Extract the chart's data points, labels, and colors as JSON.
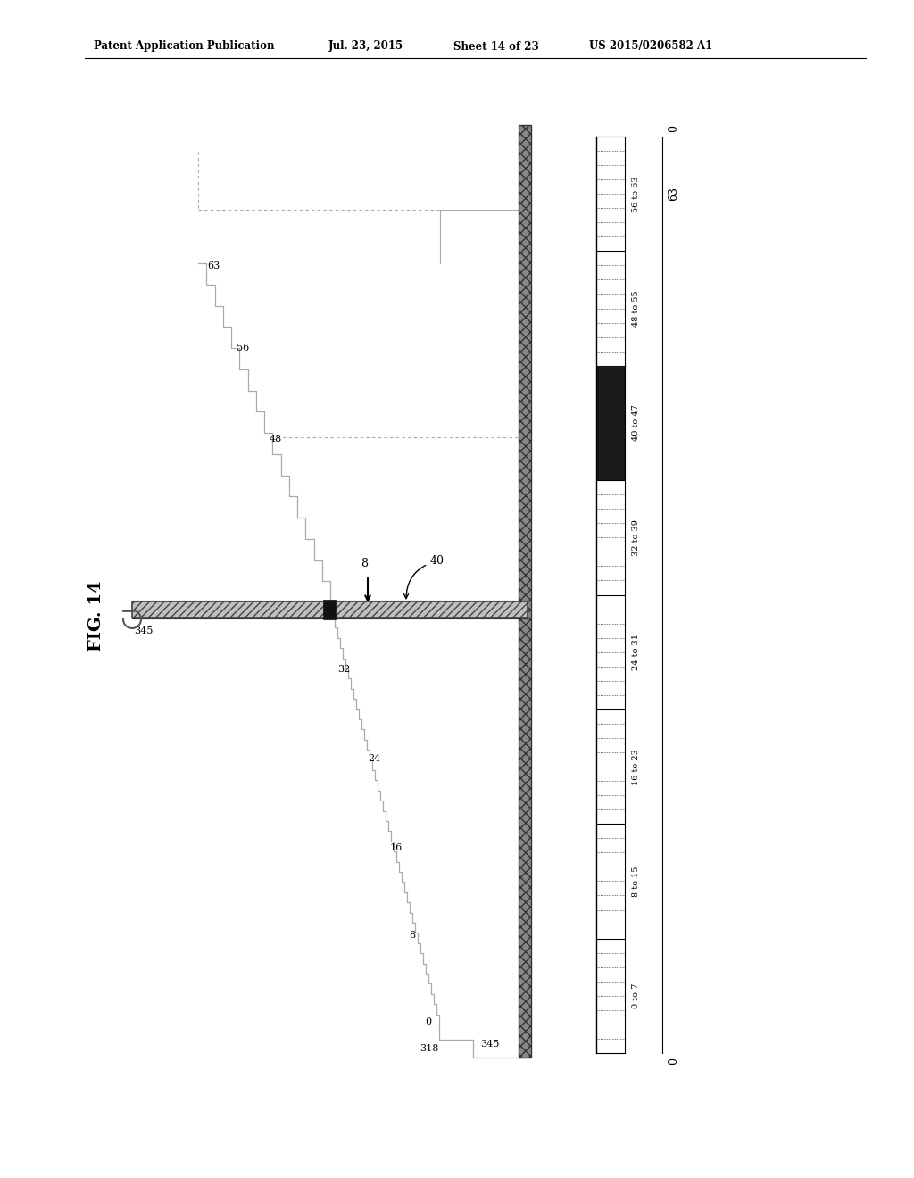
{
  "bg_color": "#ffffff",
  "header_text": "Patent Application Publication",
  "header_date": "Jul. 23, 2015",
  "header_sheet": "Sheet 14 of 23",
  "header_patent": "US 2015/0206582 A1",
  "fig_label": "FIG. 14",
  "band_labels": [
    "56 to 63",
    "48 to 55",
    "40 to 47",
    "32 to 39",
    "24 to 31",
    "16 to 23",
    "8 to 15",
    "0 to 7"
  ],
  "dark_band_index": 2,
  "ruler_top_label1": "0",
  "ruler_top_label2": "63",
  "ruler_bot_label": "0",
  "staircase_color": "#aaaaaa",
  "bar_color": "#999999",
  "vbar_color": "#666666",
  "dot_color": "#111111"
}
